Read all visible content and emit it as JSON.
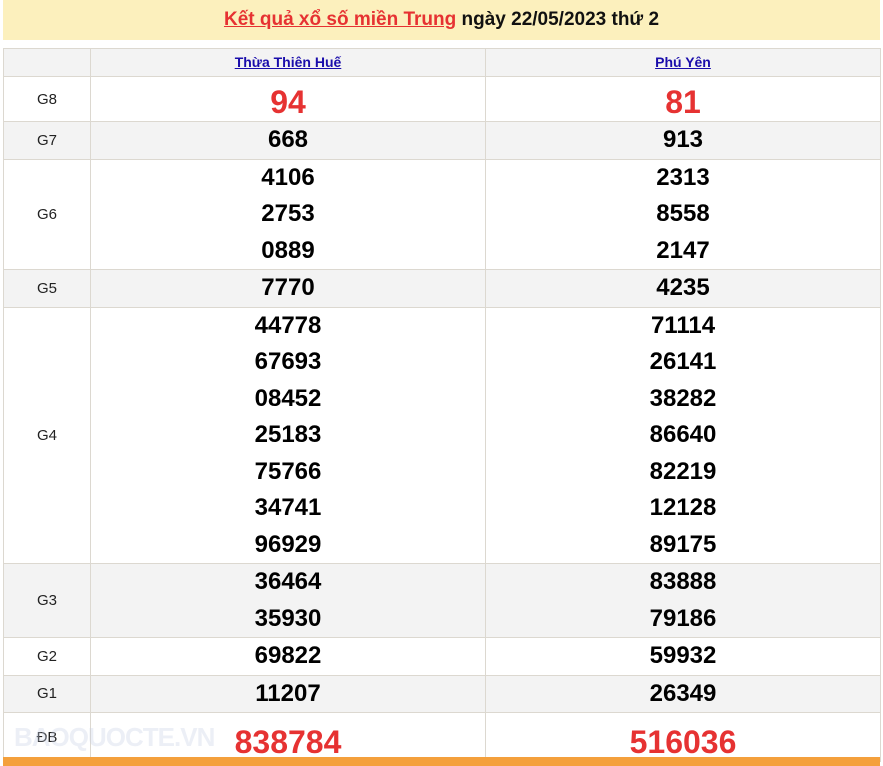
{
  "header": {
    "title_link": "Kết quả xổ số miền Trung",
    "title_rest": " ngày 22/05/2023 thứ 2"
  },
  "provinces": [
    "Thừa Thiên Huế",
    "Phú Yên"
  ],
  "rows": [
    {
      "prize": "G8",
      "highlight": true,
      "values": [
        [
          "94"
        ],
        [
          "81"
        ]
      ]
    },
    {
      "prize": "G7",
      "values": [
        [
          "668"
        ],
        [
          "913"
        ]
      ]
    },
    {
      "prize": "G6",
      "values": [
        [
          "4106",
          "2753",
          "0889"
        ],
        [
          "2313",
          "8558",
          "2147"
        ]
      ]
    },
    {
      "prize": "G5",
      "values": [
        [
          "7770"
        ],
        [
          "4235"
        ]
      ]
    },
    {
      "prize": "G4",
      "values": [
        [
          "44778",
          "67693",
          "08452",
          "25183",
          "75766",
          "34741",
          "96929"
        ],
        [
          "71114",
          "26141",
          "38282",
          "86640",
          "82219",
          "12128",
          "89175"
        ]
      ]
    },
    {
      "prize": "G3",
      "values": [
        [
          "36464",
          "35930"
        ],
        [
          "83888",
          "79186"
        ]
      ]
    },
    {
      "prize": "G2",
      "values": [
        [
          "69822"
        ],
        [
          "59932"
        ]
      ]
    },
    {
      "prize": "G1",
      "values": [
        [
          "11207"
        ],
        [
          "26349"
        ]
      ]
    },
    {
      "prize": "ĐB",
      "highlight": true,
      "values": [
        [
          "838784"
        ],
        [
          "516036"
        ]
      ]
    }
  ],
  "watermark": "BAOQUOCTE.VN",
  "colors": {
    "accent_red": "#e63232",
    "title_bg": "#fcf0bd",
    "bottom_bar": "#f4a03c",
    "link": "#1a0dab"
  }
}
